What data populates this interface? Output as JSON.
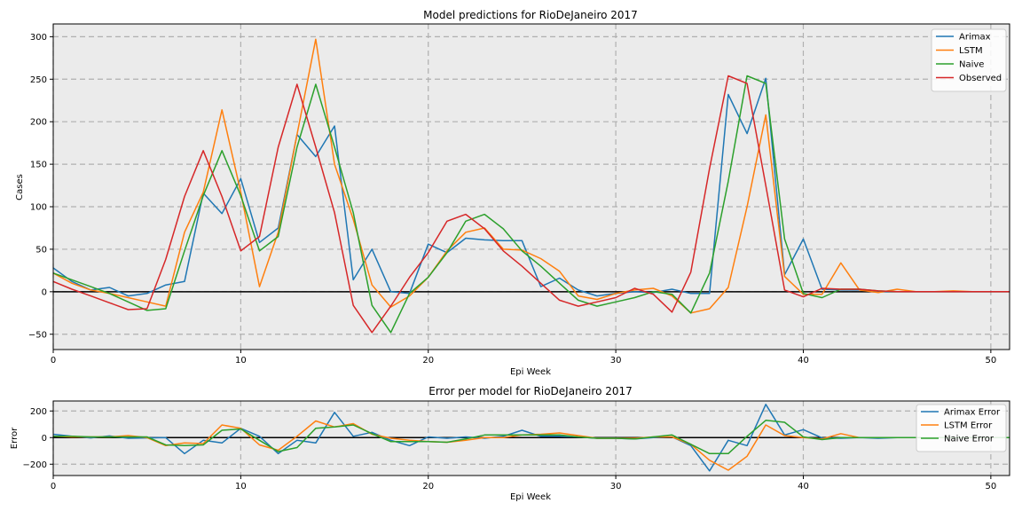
{
  "chart_data": [
    {
      "type": "line",
      "title": "Model predictions for RioDeJaneiro 2017",
      "xlabel": "Epi Week",
      "ylabel": "Cases",
      "xlim": [
        0,
        51
      ],
      "ylim": [
        -68,
        315
      ],
      "xticks": [
        0,
        10,
        20,
        30,
        40,
        50
      ],
      "yticks": [
        -50,
        0,
        50,
        100,
        150,
        200,
        250,
        300
      ],
      "grid": true,
      "zero_line": true,
      "legend_position": "top-right",
      "x": [
        0,
        1,
        2,
        3,
        4,
        5,
        6,
        7,
        8,
        9,
        10,
        11,
        12,
        13,
        14,
        15,
        16,
        17,
        18,
        19,
        20,
        21,
        22,
        23,
        24,
        25,
        26,
        27,
        28,
        29,
        30,
        31,
        32,
        33,
        34,
        35,
        36,
        37,
        38,
        39,
        40,
        41,
        42,
        43,
        44,
        45,
        46,
        47,
        48,
        49,
        50,
        51
      ],
      "series": [
        {
          "name": "Arimax",
          "color": "#1f77b4",
          "values": [
            28,
            12,
            2,
            5,
            -5,
            -2,
            8,
            12,
            116,
            92,
            133,
            58,
            75,
            185,
            159,
            195,
            14,
            50,
            0,
            -2,
            56,
            46,
            63,
            61,
            60,
            60,
            6,
            16,
            2,
            -5,
            -2,
            0,
            -1,
            3,
            -2,
            -2,
            232,
            186,
            251,
            20,
            62,
            3,
            2,
            2,
            0,
            0,
            0,
            0,
            0,
            0,
            0,
            0
          ]
        },
        {
          "name": "LSTM",
          "color": "#ff7f0e",
          "values": [
            22,
            10,
            2,
            -2,
            -7,
            -12,
            -17,
            70,
            117,
            214,
            117,
            6,
            70,
            185,
            297,
            150,
            85,
            8,
            -18,
            -5,
            17,
            48,
            70,
            75,
            50,
            49,
            39,
            24,
            -5,
            -9,
            -2,
            2,
            4,
            -5,
            -25,
            -20,
            5,
            100,
            208,
            18,
            -3,
            -3,
            34,
            2,
            -1,
            3,
            0,
            0,
            1,
            0,
            0,
            0
          ]
        },
        {
          "name": "Naive",
          "color": "#2ca02c",
          "values": [
            22,
            14,
            6,
            -2,
            -12,
            -22,
            -20,
            48,
            113,
            166,
            113,
            48,
            65,
            170,
            244,
            170,
            93,
            -16,
            -48,
            -2,
            17,
            46,
            83,
            91,
            74,
            48,
            30,
            10,
            -10,
            -17,
            -12,
            -7,
            0,
            -3,
            -25,
            22,
            130,
            254,
            245,
            62,
            -2,
            -7,
            3,
            3,
            1,
            0,
            0,
            0,
            0,
            0,
            0,
            0
          ]
        },
        {
          "name": "Observed",
          "color": "#d62728",
          "values": [
            12,
            3,
            -5,
            -13,
            -21,
            -20,
            38,
            112,
            166,
            112,
            48,
            65,
            170,
            244,
            170,
            93,
            -16,
            -48,
            -17,
            17,
            46,
            83,
            91,
            74,
            48,
            30,
            10,
            -10,
            -17,
            -12,
            -7,
            4,
            -3,
            -24,
            23,
            145,
            254,
            245,
            125,
            2,
            -6,
            4,
            3,
            3,
            1,
            0,
            0,
            0,
            0,
            0,
            0,
            0
          ]
        }
      ]
    },
    {
      "type": "line",
      "title": "Error per model for RioDeJaneiro 2017",
      "xlabel": "Epi Week",
      "ylabel": "Error",
      "xlim": [
        0,
        51
      ],
      "ylim": [
        -285,
        275
      ],
      "xticks": [
        0,
        10,
        20,
        30,
        40,
        50
      ],
      "yticks": [
        -200,
        0,
        200
      ],
      "grid": true,
      "zero_line": true,
      "legend_position": "top-right",
      "x": [
        0,
        1,
        2,
        3,
        4,
        5,
        6,
        7,
        8,
        9,
        10,
        11,
        12,
        13,
        14,
        15,
        16,
        17,
        18,
        19,
        20,
        21,
        22,
        23,
        24,
        25,
        26,
        27,
        28,
        29,
        30,
        31,
        32,
        33,
        34,
        35,
        36,
        37,
        38,
        39,
        40,
        41,
        42,
        43,
        44,
        45,
        46,
        47,
        48,
        49,
        50,
        51
      ],
      "series": [
        {
          "name": "Arimax Error",
          "color": "#1f77b4",
          "values": [
            25,
            10,
            -2,
            12,
            -5,
            -2,
            0,
            -120,
            -20,
            -40,
            70,
            10,
            -120,
            -20,
            -40,
            190,
            10,
            40,
            -20,
            -60,
            5,
            -5,
            5,
            -5,
            10,
            55,
            10,
            10,
            5,
            -5,
            -5,
            -10,
            0,
            5,
            -60,
            -250,
            -20,
            -60,
            250,
            20,
            60,
            -2,
            -5,
            0,
            -5,
            0,
            0,
            0,
            0,
            0,
            0,
            0
          ]
        },
        {
          "name": "LSTM Error",
          "color": "#ff7f0e",
          "values": [
            10,
            5,
            5,
            5,
            15,
            0,
            -60,
            -40,
            -45,
            95,
            70,
            -55,
            -95,
            10,
            125,
            80,
            105,
            25,
            -5,
            -20,
            -30,
            -35,
            -20,
            0,
            0,
            20,
            25,
            35,
            15,
            -5,
            -5,
            -5,
            5,
            5,
            -50,
            -170,
            -245,
            -140,
            95,
            15,
            0,
            -10,
            30,
            0,
            0,
            0,
            0,
            0,
            0,
            0,
            0,
            0
          ]
        },
        {
          "name": "Naive Error",
          "color": "#2ca02c",
          "values": [
            10,
            10,
            5,
            5,
            5,
            5,
            -55,
            -60,
            -55,
            55,
            65,
            -20,
            -105,
            -75,
            70,
            80,
            95,
            30,
            -30,
            -30,
            -30,
            -35,
            -10,
            20,
            20,
            20,
            20,
            20,
            5,
            -5,
            -5,
            -10,
            5,
            20,
            -50,
            -120,
            -120,
            10,
            130,
            115,
            5,
            -15,
            0,
            0,
            0,
            0,
            0,
            0,
            0,
            0,
            0,
            0
          ]
        }
      ]
    }
  ]
}
